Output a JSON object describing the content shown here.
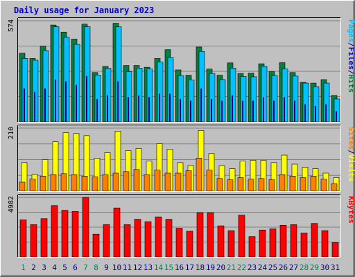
{
  "chart_data": {
    "type": "bar",
    "title": "Daily usage for January 2023",
    "days": [
      "1",
      "2",
      "3",
      "4",
      "5",
      "6",
      "7",
      "8",
      "9",
      "10",
      "11",
      "12",
      "13",
      "14",
      "15",
      "16",
      "17",
      "18",
      "19",
      "20",
      "21",
      "22",
      "23",
      "24",
      "25",
      "26",
      "27",
      "28",
      "29",
      "30",
      "31"
    ],
    "weekend_days": [
      "1",
      "7",
      "8",
      "14",
      "15",
      "21",
      "22",
      "28",
      "29"
    ],
    "colors": {
      "hits": "#008040",
      "files": "#00c0ff",
      "pages": "#000080",
      "visits": "#ffff00",
      "sites": "#ff8000",
      "kbytes": "#ff0000",
      "weekday_label": "#000080",
      "weekend_label": "#00805c",
      "panel_bg": "#c0c0c0",
      "outer_bg": "#c0c0c0",
      "title": "#0000cc"
    },
    "panels": [
      {
        "name": "hits-files-pages",
        "ymax_label": "574",
        "ymax": 574,
        "legend": [
          {
            "text": "Pages",
            "color": "#00c0ff"
          },
          {
            "text": "/",
            "color": "#000080"
          },
          {
            "text": "Files",
            "color": "#0000cc"
          },
          {
            "text": "/",
            "color": "#000080"
          },
          {
            "text": "Hits",
            "color": "#008040"
          }
        ],
        "series": [
          {
            "name": "Hits",
            "color": "#008040",
            "values": [
              390,
              360,
              430,
              550,
              510,
              470,
              555,
              280,
              315,
              560,
              320,
              320,
              310,
              360,
              410,
              295,
              265,
              425,
              300,
              265,
              335,
              275,
              277,
              330,
              285,
              336,
              280,
              225,
              220,
              240,
              150
            ]
          },
          {
            "name": "Files",
            "color": "#00c0ff",
            "values": [
              360,
              350,
              405,
              540,
              480,
              440,
              540,
              266,
              304,
              540,
              285,
              305,
              300,
              340,
              365,
              262,
              238,
              400,
              275,
              240,
              305,
              258,
              256,
              315,
              263,
              300,
              260,
              220,
              200,
              220,
              130
            ]
          },
          {
            "name": "Pages",
            "color": "#000080",
            "values": [
              190,
              170,
              190,
              240,
              230,
              210,
              260,
              130,
              150,
              230,
              140,
              150,
              140,
              160,
              160,
              130,
              120,
              190,
              130,
              120,
              150,
              120,
              120,
              140,
              120,
              140,
              120,
              100,
              90,
              100,
              60
            ]
          }
        ]
      },
      {
        "name": "visits-sites",
        "ymax_label": "210",
        "ymax": 210,
        "legend": [
          {
            "text": "Sites",
            "color": "#ff8000"
          },
          {
            "text": "/",
            "color": "#000080"
          },
          {
            "text": "Visits",
            "color": "#ffff00"
          }
        ],
        "series": [
          {
            "name": "Visits",
            "color": "#ffff00",
            "values": [
              95,
              55,
              105,
              165,
              195,
              192,
              185,
              110,
              128,
              200,
              135,
              142,
              100,
              158,
              140,
              95,
              85,
              202,
              125,
              85,
              75,
              100,
              103,
              103,
              95,
              120,
              90,
              80,
              75,
              60,
              45
            ]
          },
          {
            "name": "Sites",
            "color": "#ff8000",
            "values": [
              30,
              40,
              50,
              55,
              58,
              55,
              50,
              48,
              55,
              60,
              65,
              72,
              55,
              70,
              60,
              60,
              68,
              110,
              70,
              42,
              38,
              45,
              40,
              42,
              38,
              55,
              50,
              45,
              50,
              40,
              25
            ]
          }
        ]
      },
      {
        "name": "kbytes",
        "ymax_label": "4982",
        "ymax": 4982,
        "legend": [
          {
            "text": "KBytes",
            "color": "#ff0000"
          }
        ],
        "series": [
          {
            "name": "KBytes",
            "color": "#ff0000",
            "values": [
              3100,
              2700,
              3200,
              4300,
              3900,
              3800,
              4982,
              1900,
              2700,
              4100,
              2700,
              3150,
              2950,
              3350,
              3150,
              2400,
              2150,
              3700,
              3700,
              2600,
              2200,
              3500,
              1700,
              2250,
              2350,
              2650,
              2700,
              2000,
              2800,
              2200,
              1200
            ]
          }
        ]
      }
    ]
  }
}
